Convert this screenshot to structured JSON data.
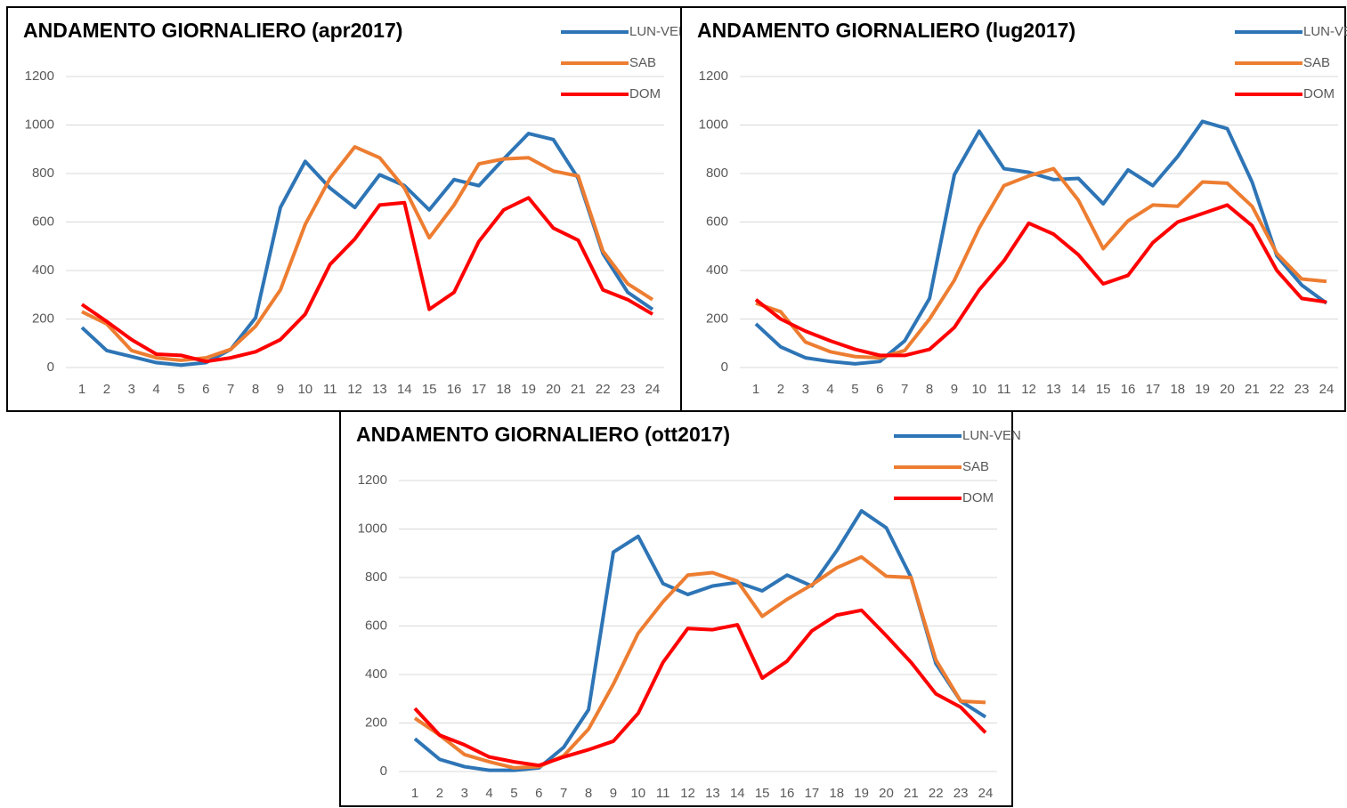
{
  "chart_data": [
    {
      "type": "line",
      "title": "ANDAMENTO GIORNALIERO (apr2017)",
      "categories": [
        "1",
        "2",
        "3",
        "4",
        "5",
        "6",
        "7",
        "8",
        "9",
        "10",
        "11",
        "12",
        "13",
        "14",
        "15",
        "16",
        "17",
        "18",
        "19",
        "20",
        "21",
        "22",
        "23",
        "24"
      ],
      "series": [
        {
          "name": "LUN-VEN",
          "color": "#2e75b6",
          "values": [
            165,
            70,
            45,
            20,
            10,
            20,
            75,
            205,
            660,
            850,
            740,
            660,
            795,
            750,
            650,
            775,
            750,
            860,
            965,
            940,
            780,
            470,
            310,
            240
          ]
        },
        {
          "name": "SAB",
          "color": "#ed7d31",
          "values": [
            230,
            180,
            70,
            40,
            30,
            40,
            75,
            170,
            320,
            590,
            780,
            910,
            865,
            740,
            535,
            670,
            840,
            860,
            865,
            810,
            790,
            480,
            345,
            280
          ]
        },
        {
          "name": "DOM",
          "color": "#ff0000",
          "values": [
            260,
            190,
            115,
            55,
            50,
            25,
            40,
            65,
            115,
            220,
            425,
            530,
            670,
            680,
            240,
            310,
            520,
            650,
            700,
            575,
            525,
            320,
            280,
            220
          ]
        }
      ],
      "ylim": [
        0,
        1200
      ],
      "yticks": [
        0,
        200,
        400,
        600,
        800,
        1000,
        1200
      ],
      "grid": true,
      "legend": "top-right"
    },
    {
      "type": "line",
      "title": "ANDAMENTO GIORNALIERO (lug2017)",
      "categories": [
        "1",
        "2",
        "3",
        "4",
        "5",
        "6",
        "7",
        "8",
        "9",
        "10",
        "11",
        "12",
        "13",
        "14",
        "15",
        "16",
        "17",
        "18",
        "19",
        "20",
        "21",
        "22",
        "23",
        "24"
      ],
      "series": [
        {
          "name": "LUN-VEN",
          "color": "#2e75b6",
          "values": [
            180,
            85,
            40,
            25,
            15,
            25,
            110,
            285,
            795,
            975,
            820,
            805,
            775,
            780,
            675,
            815,
            750,
            870,
            1015,
            985,
            765,
            460,
            340,
            265
          ]
        },
        {
          "name": "SAB",
          "color": "#ed7d31",
          "values": [
            265,
            230,
            105,
            65,
            45,
            40,
            70,
            200,
            360,
            575,
            750,
            790,
            820,
            690,
            490,
            605,
            670,
            665,
            765,
            760,
            665,
            470,
            365,
            355
          ]
        },
        {
          "name": "DOM",
          "color": "#ff0000",
          "values": [
            280,
            200,
            150,
            110,
            75,
            50,
            50,
            75,
            165,
            320,
            440,
            595,
            550,
            465,
            345,
            380,
            515,
            600,
            635,
            670,
            585,
            400,
            285,
            270
          ]
        }
      ],
      "ylim": [
        0,
        1200
      ],
      "yticks": [
        0,
        200,
        400,
        600,
        800,
        1000,
        1200
      ],
      "grid": true,
      "legend": "top-right"
    },
    {
      "type": "line",
      "title": "ANDAMENTO GIORNALIERO (ott2017)",
      "categories": [
        "1",
        "2",
        "3",
        "4",
        "5",
        "6",
        "7",
        "8",
        "9",
        "10",
        "11",
        "12",
        "13",
        "14",
        "15",
        "16",
        "17",
        "18",
        "19",
        "20",
        "21",
        "22",
        "23",
        "24"
      ],
      "series": [
        {
          "name": "LUN-VEN",
          "color": "#2e75b6",
          "values": [
            135,
            50,
            20,
            5,
            5,
            15,
            100,
            255,
            905,
            970,
            775,
            730,
            765,
            780,
            745,
            810,
            765,
            910,
            1075,
            1005,
            800,
            445,
            290,
            225
          ]
        },
        {
          "name": "SAB",
          "color": "#ed7d31",
          "values": [
            220,
            150,
            70,
            40,
            15,
            20,
            65,
            175,
            360,
            570,
            700,
            810,
            820,
            785,
            640,
            710,
            770,
            840,
            885,
            805,
            800,
            460,
            290,
            285
          ]
        },
        {
          "name": "DOM",
          "color": "#ff0000",
          "values": [
            260,
            150,
            110,
            60,
            40,
            25,
            60,
            90,
            125,
            240,
            450,
            590,
            585,
            605,
            385,
            455,
            580,
            645,
            665,
            560,
            450,
            320,
            265,
            160
          ]
        }
      ],
      "ylim": [
        0,
        1200
      ],
      "yticks": [
        0,
        200,
        400,
        600,
        800,
        1000,
        1200
      ],
      "grid": true,
      "legend": "top-right"
    }
  ]
}
